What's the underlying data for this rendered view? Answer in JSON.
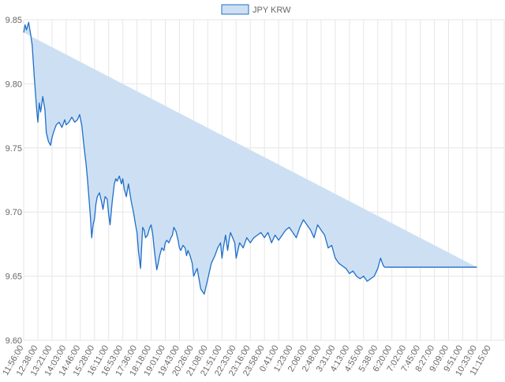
{
  "colors": {
    "line": "#1f6fc9",
    "fill": "#cde0f3",
    "grid": "#e6e6e6",
    "axis_text": "#666666"
  },
  "legend": {
    "label": "JPY KRW"
  },
  "chart_data": {
    "type": "area",
    "title": "",
    "xlabel": "",
    "ylabel": "",
    "ylim": [
      9.6,
      9.85
    ],
    "y_ticks": [
      "9.85",
      "9.80",
      "9.75",
      "9.70",
      "9.65",
      "9.60"
    ],
    "x_tick_labels": [
      "11:56:00",
      "12:38:00",
      "13:21:00",
      "14:03:00",
      "14:46:00",
      "15:28:00",
      "16:11:00",
      "16:53:00",
      "17:36:00",
      "18:18:00",
      "19:01:00",
      "19:43:00",
      "20:26:00",
      "21:08:00",
      "21:51:00",
      "22:33:00",
      "23:16:00",
      "23:58:00",
      "0:41:00",
      "1:23:00",
      "2:06:00",
      "2:48:00",
      "3:31:00",
      "4:13:00",
      "4:55:00",
      "5:38:00",
      "6:20:00",
      "7:02:00",
      "7:45:00",
      "8:27:00",
      "9:09:00",
      "9:51:00",
      "10:33:00",
      "11:15:00"
    ],
    "grid": true,
    "legend_position": "top-center",
    "series": [
      {
        "name": "JPY KRW",
        "x_tick_index": [
          0,
          0.1,
          0.2,
          0.35,
          0.5,
          0.6,
          0.75,
          0.9,
          1.0,
          1.1,
          1.2,
          1.35,
          1.5,
          1.6,
          1.75,
          1.9,
          2.0,
          2.1,
          2.3,
          2.5,
          2.7,
          2.9,
          3.0,
          3.2,
          3.4,
          3.6,
          3.8,
          3.95,
          4.1,
          4.25,
          4.4,
          4.5,
          4.6,
          4.7,
          4.8,
          4.9,
          5.0,
          5.1,
          5.2,
          5.35,
          5.5,
          5.6,
          5.75,
          5.9,
          6.0,
          6.1,
          6.25,
          6.4,
          6.5,
          6.6,
          6.75,
          6.9,
          7.0,
          7.1,
          7.25,
          7.4,
          7.5,
          7.6,
          7.75,
          7.9,
          8.0,
          8.1,
          8.25,
          8.4,
          8.5,
          8.6,
          8.75,
          8.9,
          9.0,
          9.1,
          9.25,
          9.4,
          9.5,
          9.6,
          9.75,
          9.9,
          10.0,
          10.1,
          10.25,
          10.4,
          10.5,
          10.6,
          10.75,
          10.9,
          11.0,
          11.1,
          11.25,
          11.4,
          11.5,
          11.6,
          11.75,
          11.9,
          12.0,
          12.25,
          12.5,
          12.75,
          13.0,
          13.25,
          13.5,
          13.7,
          13.9,
          14.0,
          14.1,
          14.25,
          14.4,
          14.5,
          14.6,
          14.75,
          14.9,
          15.0,
          15.25,
          15.5,
          15.75,
          16.0,
          16.25,
          16.5,
          16.75,
          17.0,
          17.25,
          17.5,
          17.75,
          18.0,
          18.25,
          18.5,
          18.75,
          19.0,
          19.25,
          19.5,
          19.75,
          20.0,
          20.25,
          20.5,
          20.75,
          21.0,
          21.25,
          21.5,
          21.75,
          22.0,
          22.25,
          22.5,
          22.75,
          23.0,
          23.25,
          23.5,
          23.75,
          24.0,
          24.25,
          24.5,
          24.75,
          25.0,
          25.2,
          25.4,
          25.5,
          25.6,
          25.75,
          26.0,
          27.0,
          28.0,
          29.0,
          30.0,
          31.0,
          32.0,
          33.0,
          33.5
        ],
        "values": [
          9.84,
          9.846,
          9.842,
          9.848,
          9.838,
          9.83,
          9.805,
          9.782,
          9.77,
          9.785,
          9.778,
          9.79,
          9.78,
          9.762,
          9.755,
          9.752,
          9.758,
          9.762,
          9.768,
          9.77,
          9.766,
          9.772,
          9.768,
          9.77,
          9.774,
          9.77,
          9.772,
          9.776,
          9.768,
          9.752,
          9.738,
          9.726,
          9.712,
          9.698,
          9.68,
          9.69,
          9.695,
          9.706,
          9.712,
          9.715,
          9.708,
          9.702,
          9.712,
          9.71,
          9.698,
          9.69,
          9.708,
          9.722,
          9.726,
          9.724,
          9.728,
          9.722,
          9.726,
          9.718,
          9.712,
          9.722,
          9.715,
          9.708,
          9.7,
          9.69,
          9.684,
          9.67,
          9.656,
          9.688,
          9.686,
          9.68,
          9.682,
          9.688,
          9.69,
          9.684,
          9.668,
          9.655,
          9.66,
          9.666,
          9.672,
          9.67,
          9.676,
          9.678,
          9.676,
          9.68,
          9.682,
          9.688,
          9.685,
          9.678,
          9.672,
          9.67,
          9.674,
          9.672,
          9.666,
          9.67,
          9.666,
          9.66,
          9.65,
          9.656,
          9.64,
          9.636,
          9.648,
          9.66,
          9.666,
          9.672,
          9.676,
          9.664,
          9.672,
          9.682,
          9.67,
          9.678,
          9.684,
          9.68,
          9.676,
          9.664,
          9.676,
          9.672,
          9.68,
          9.676,
          9.68,
          9.682,
          9.684,
          9.68,
          9.684,
          9.676,
          9.682,
          9.678,
          9.682,
          9.686,
          9.688,
          9.684,
          9.68,
          9.688,
          9.694,
          9.69,
          9.686,
          9.68,
          9.69,
          9.686,
          9.682,
          9.672,
          9.674,
          9.664,
          9.66,
          9.658,
          9.656,
          9.652,
          9.654,
          9.65,
          9.648,
          9.65,
          9.646,
          9.648,
          9.65,
          9.656,
          9.664,
          9.658,
          9.657,
          9.657,
          9.657,
          9.657,
          9.657,
          9.657,
          9.657,
          9.657,
          9.657,
          9.657
        ]
      }
    ]
  }
}
